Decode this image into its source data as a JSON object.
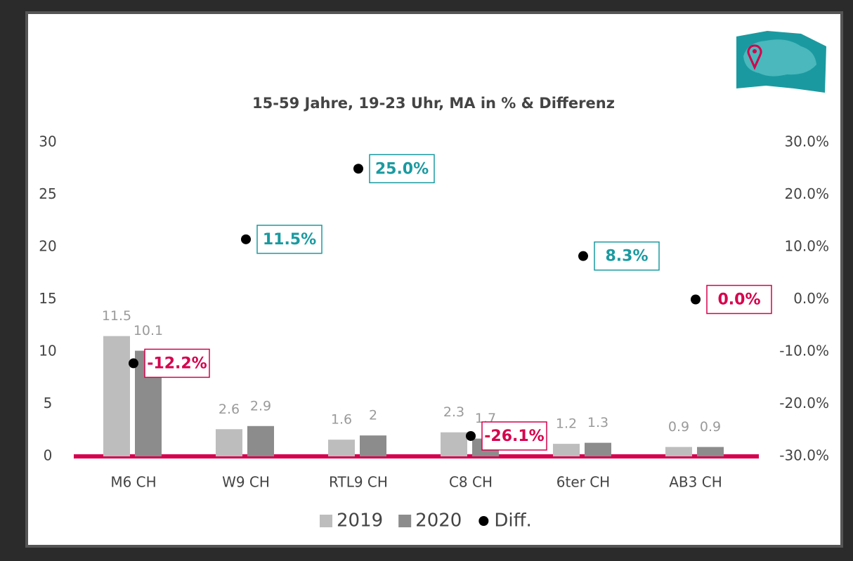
{
  "chart_data": {
    "type": "bar",
    "title": "15-59 Jahre, 19-23 Uhr, MA in % & Differenz",
    "categories": [
      "M6 CH",
      "W9 CH",
      "RTL9 CH",
      "C8 CH",
      "6ter CH",
      "AB3 CH"
    ],
    "series": [
      {
        "name": "2019",
        "color": "#bdbdbd",
        "values": [
          11.5,
          2.6,
          1.6,
          2.3,
          1.2,
          0.9
        ]
      },
      {
        "name": "2020",
        "color": "#8c8c8c",
        "values": [
          10.1,
          2.9,
          2,
          1.7,
          1.3,
          0.9
        ]
      },
      {
        "name": "Diff.",
        "color": "#000000",
        "axis": "y2",
        "values": [
          -12.2,
          11.5,
          25.0,
          -26.1,
          8.3,
          0.0
        ],
        "value_labels": [
          "-12.2%",
          "11.5%",
          "25.0%",
          "-26.1%",
          "8.3%",
          "0.0%"
        ],
        "label_colors": [
          "#d6004c",
          "#1a9aa0",
          "#1a9aa0",
          "#d6004c",
          "#1a9aa0",
          "#d6004c"
        ]
      }
    ],
    "ylim": [
      0,
      30
    ],
    "yticks": [
      0,
      5,
      10,
      15,
      20,
      25,
      30
    ],
    "y2lim": [
      -30,
      30
    ],
    "y2ticks": [
      {
        "value": -30,
        "label": "-30.0%"
      },
      {
        "value": -20,
        "label": "-20.0%"
      },
      {
        "value": -10,
        "label": "-10.0%"
      },
      {
        "value": 0,
        "label": "0.0%"
      },
      {
        "value": 10,
        "label": "10.0%"
      },
      {
        "value": 20,
        "label": "20.0%"
      },
      {
        "value": 30,
        "label": "30.0%"
      }
    ],
    "baseline_color": "#d6004c"
  }
}
